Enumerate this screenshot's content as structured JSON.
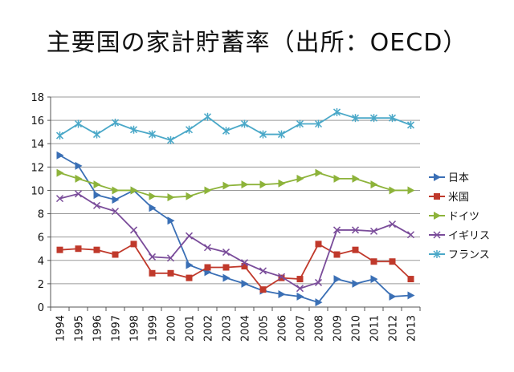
{
  "chart_data": {
    "type": "line",
    "title": "主要国の家計貯蓄率（出所：OECD）",
    "xlabel": "",
    "ylabel": "",
    "ylim": [
      0,
      18
    ],
    "yticks": [
      0,
      2,
      4,
      6,
      8,
      10,
      12,
      14,
      16,
      18
    ],
    "categories": [
      "1994",
      "1995",
      "1996",
      "1997",
      "1998",
      "1999",
      "2000",
      "2001",
      "2002",
      "2003",
      "2004",
      "2005",
      "2006",
      "2007",
      "2008",
      "2009",
      "2010",
      "2011",
      "2012",
      "2013"
    ],
    "grid": true,
    "legend_position": "right",
    "series": [
      {
        "name": "日本",
        "color": "#3a6fb5",
        "marker": "triangle",
        "values": [
          13.0,
          12.1,
          9.6,
          9.2,
          10.0,
          8.5,
          7.4,
          3.6,
          3.0,
          2.5,
          2.0,
          1.4,
          1.1,
          0.9,
          0.4,
          2.4,
          2.0,
          2.4,
          0.9,
          1.0
        ]
      },
      {
        "name": "米国",
        "color": "#c0392b",
        "marker": "square",
        "values": [
          4.9,
          5.0,
          4.9,
          4.5,
          5.4,
          2.9,
          2.9,
          2.5,
          3.4,
          3.4,
          3.5,
          1.5,
          2.5,
          2.4,
          5.4,
          4.5,
          4.9,
          3.9,
          3.9,
          2.4
        ]
      },
      {
        "name": "ドイツ",
        "color": "#8db33a",
        "marker": "triangle",
        "values": [
          11.5,
          11.0,
          10.5,
          10.0,
          10.0,
          9.5,
          9.4,
          9.5,
          10.0,
          10.4,
          10.5,
          10.5,
          10.6,
          11.0,
          11.5,
          11.0,
          11.0,
          10.5,
          10.0,
          10.0
        ]
      },
      {
        "name": "イギリス",
        "color": "#7a4c9a",
        "marker": "x",
        "values": [
          9.3,
          9.7,
          8.7,
          8.2,
          6.6,
          4.3,
          4.2,
          6.1,
          5.1,
          4.7,
          3.8,
          3.1,
          2.6,
          1.6,
          2.1,
          6.6,
          6.6,
          6.5,
          7.1,
          6.2
        ]
      },
      {
        "name": "フランス",
        "color": "#4aa8c8",
        "marker": "star",
        "values": [
          14.7,
          15.7,
          14.8,
          15.8,
          15.2,
          14.8,
          14.3,
          15.2,
          16.3,
          15.1,
          15.7,
          14.8,
          14.8,
          15.7,
          15.7,
          16.7,
          16.2,
          16.2,
          16.2,
          15.6
        ]
      }
    ]
  }
}
